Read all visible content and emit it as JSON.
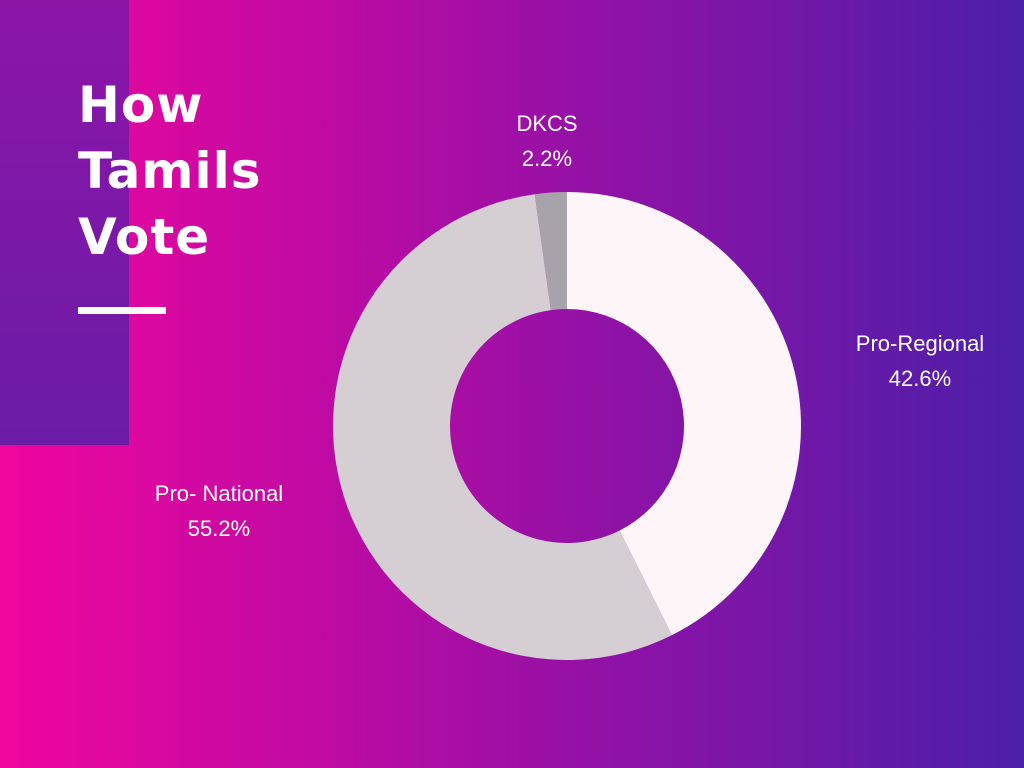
{
  "title_lines": [
    "How",
    "Tamils",
    "Vote"
  ],
  "chart_data": {
    "type": "pie",
    "variant": "donut",
    "categories": [
      "Pro-Regional",
      "Pro- National",
      "DKCS"
    ],
    "values": [
      42.6,
      55.2,
      2.2
    ],
    "value_labels": [
      "42.6%",
      "55.2%",
      "2.2%"
    ],
    "colors": [
      "#fdf5f8",
      "#d5cfd4",
      "#a8a3aa"
    ],
    "start": "12 o'clock",
    "direction": "clockwise"
  }
}
